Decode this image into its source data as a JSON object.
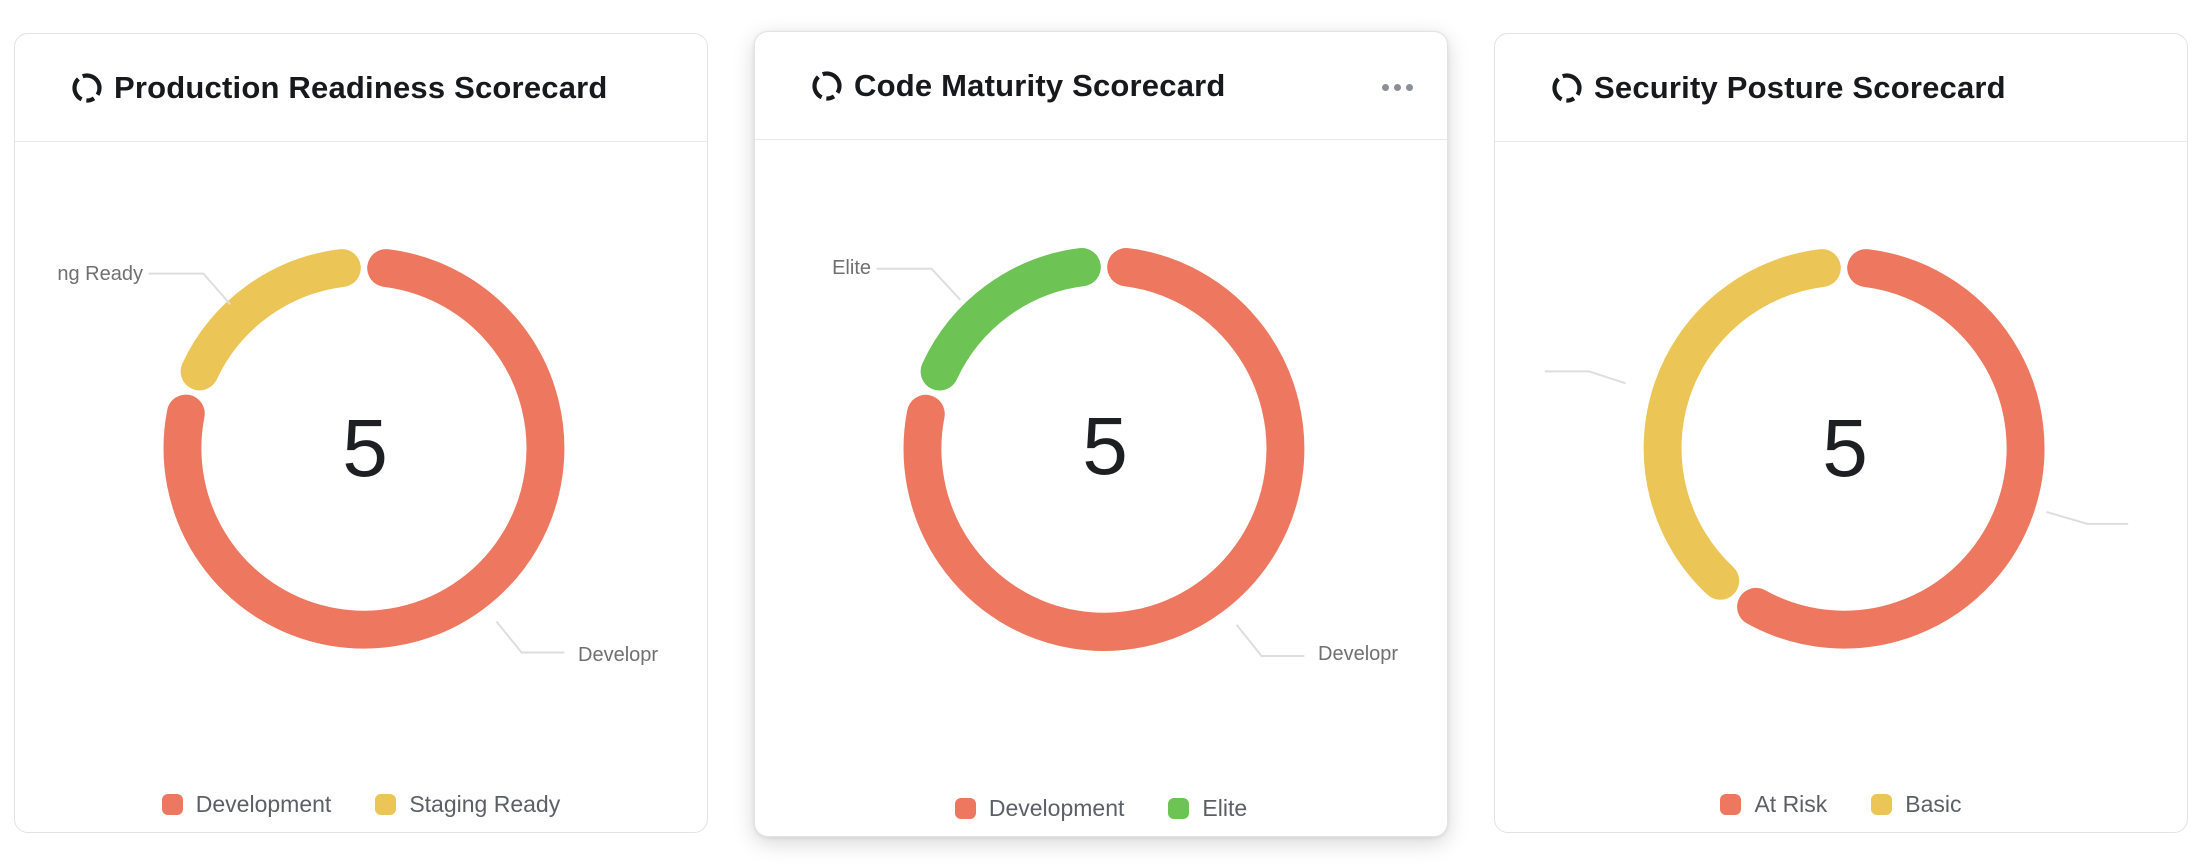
{
  "cards": [
    {
      "title": "Production Readiness Scorecard",
      "center_value": "5",
      "menu_visible": false,
      "callout_top_left": "ng Ready",
      "callout_bottom_right": "Developr",
      "legend": [
        {
          "label": "Development",
          "color": "#ED785F"
        },
        {
          "label": "Staging Ready",
          "color": "#ECC557"
        }
      ]
    },
    {
      "title": "Code Maturity Scorecard",
      "center_value": "5",
      "menu_visible": true,
      "callout_top_left": "Elite",
      "callout_bottom_right": "Developr",
      "legend": [
        {
          "label": "Development",
          "color": "#ED785F"
        },
        {
          "label": "Elite",
          "color": "#6DC354"
        }
      ]
    },
    {
      "title": "Security Posture Scorecard",
      "center_value": "5",
      "menu_visible": false,
      "callout_top_left": "",
      "callout_bottom_right": "",
      "legend": [
        {
          "label": "At Risk",
          "color": "#ED785F"
        },
        {
          "label": "Basic",
          "color": "#ECC557"
        }
      ]
    }
  ],
  "chart_data": [
    {
      "type": "pie",
      "subtype": "donut",
      "title": "Production Readiness Scorecard",
      "center_label": "5",
      "total": 5,
      "start_angle_deg": 0,
      "direction": "clockwise",
      "legend_position": "bottom",
      "series": [
        {
          "name": "Development",
          "value": 4,
          "color": "#ED785F"
        },
        {
          "name": "Staging Ready",
          "value": 1,
          "color": "#ECC557"
        }
      ]
    },
    {
      "type": "pie",
      "subtype": "donut",
      "title": "Code Maturity Scorecard",
      "center_label": "5",
      "total": 5,
      "start_angle_deg": 0,
      "direction": "clockwise",
      "legend_position": "bottom",
      "series": [
        {
          "name": "Development",
          "value": 4,
          "color": "#ED785F"
        },
        {
          "name": "Elite",
          "value": 1,
          "color": "#6DC354"
        }
      ]
    },
    {
      "type": "pie",
      "subtype": "donut",
      "title": "Security Posture Scorecard",
      "center_label": "5",
      "total": 5,
      "start_angle_deg": 0,
      "direction": "clockwise",
      "legend_position": "bottom",
      "series": [
        {
          "name": "At Risk",
          "value": 3,
          "color": "#ED785F"
        },
        {
          "name": "Basic",
          "value": 2,
          "color": "#ECC557"
        }
      ]
    }
  ],
  "ui_colors": {
    "red": "#ED785F",
    "yellow": "#ECC557",
    "green": "#6DC354",
    "callout_line": "#dedede",
    "title_text": "#17191c",
    "legend_text": "#5c6066"
  }
}
